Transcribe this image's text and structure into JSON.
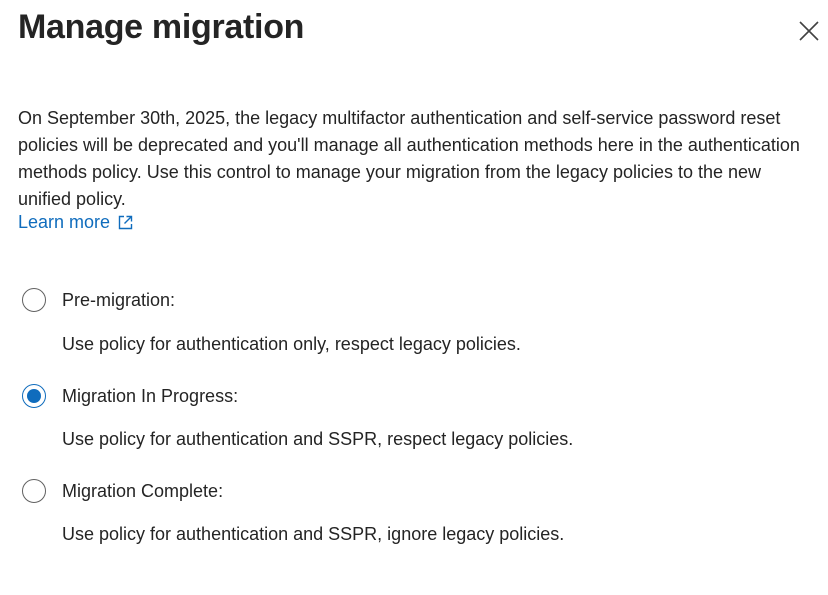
{
  "dialog": {
    "title": "Manage migration",
    "description": "On September 30th, 2025, the legacy multifactor authentication and self-service password reset policies will be deprecated and you'll manage all authentication methods here in the authentication methods policy. Use this control to manage your migration from the legacy policies to the new unified policy.",
    "learn_more": "Learn more",
    "accent_color": "#0f6cbd",
    "selected_option": "Migration In Progress:",
    "options": [
      {
        "label": "Pre-migration:",
        "description": "Use policy for authentication only, respect legacy policies.",
        "checked": false
      },
      {
        "label": "Migration In Progress:",
        "description": "Use policy for authentication and SSPR, respect legacy policies.",
        "checked": true
      },
      {
        "label": "Migration Complete:",
        "description": "Use policy for authentication and SSPR, ignore legacy policies.",
        "checked": false
      }
    ]
  }
}
